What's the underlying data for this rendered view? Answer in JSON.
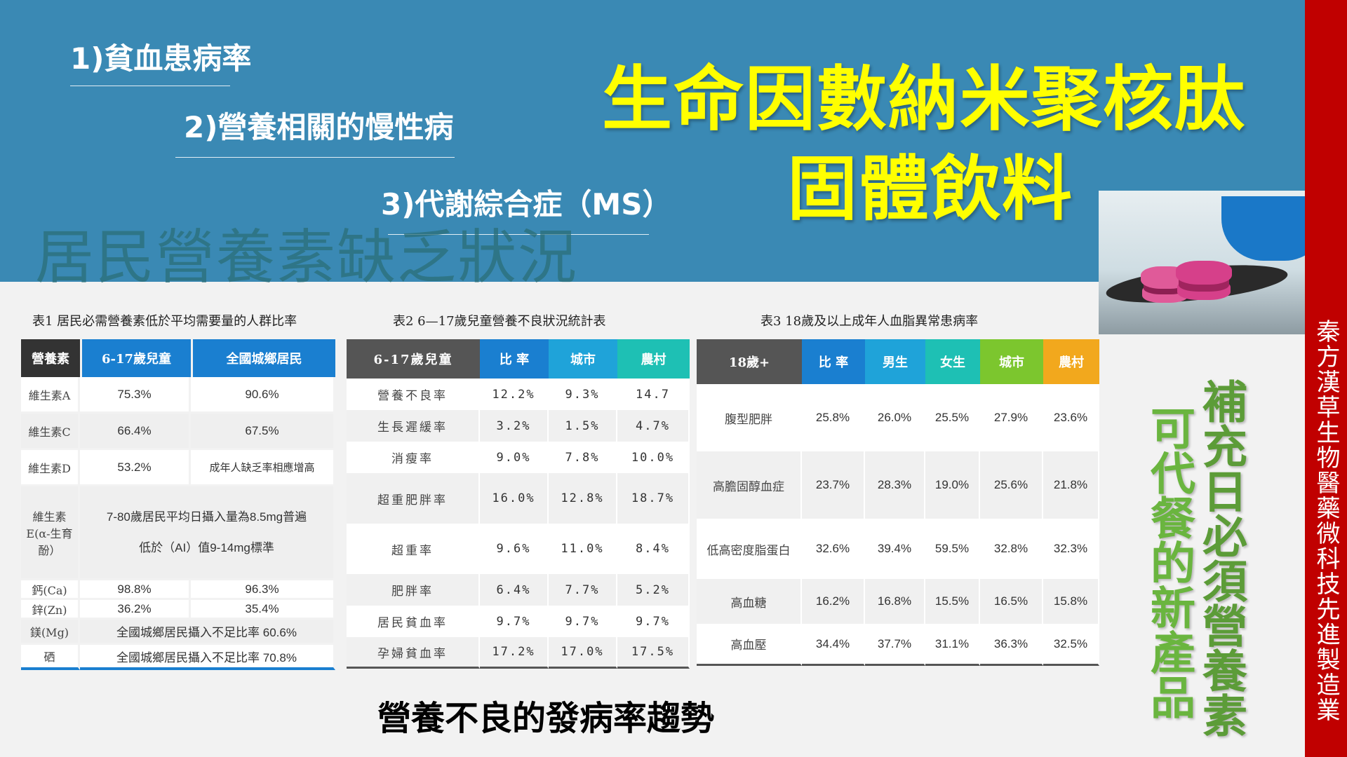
{
  "header": {
    "issues": [
      "1)貧血患病率",
      "2)營養相關的慢性病",
      "3)代謝綜合症（MS）"
    ],
    "ghost_title": "居民營養素缺乏狀況",
    "product_line1": "生命因數納米聚核肽",
    "product_line2": "固體飲料"
  },
  "sidebar": {
    "company": "秦方漢草生物醫藥微科技先進製造業"
  },
  "table1": {
    "caption": "表1  居民必需營養素低於平均需要量的人群比率",
    "headers": [
      "營養素",
      "6-17歲兒童",
      "全國城鄉居民"
    ],
    "rows": [
      {
        "name": "維生素A",
        "child": "75.3%",
        "national": "90.6%"
      },
      {
        "name": "維生素C",
        "child": "66.4%",
        "national": "67.5%"
      },
      {
        "name": "維生素D",
        "child": "53.2%",
        "national": "成年人缺乏率相應增高"
      },
      {
        "name": "維生素E(α-生育酚）",
        "note_line1": "7-80歲居民平均日攝入量為8.5mg普遍",
        "note_line2": "低於（AI）值9-14mg標準"
      },
      {
        "name": "鈣(Ca)",
        "child": "98.8%",
        "national": "96.3%"
      },
      {
        "name": "鋅(Zn)",
        "child": "36.2%",
        "national": "35.4%"
      },
      {
        "name": "鎂(Mg)",
        "note": "全國城鄉居民攝入不足比率 60.6%"
      },
      {
        "name": "硒",
        "note": "全國城鄉居民攝入不足比率 70.8%"
      }
    ]
  },
  "table2": {
    "caption": "表2    6—17歲兒童營養不良狀況統計表",
    "headers": [
      "6-17歲兒童",
      "比 率",
      "城市",
      "農村"
    ],
    "rows": [
      [
        "營養不良率",
        "12.2%",
        "9.3%",
        "14.7"
      ],
      [
        "生長遲緩率",
        "3.2%",
        "1.5%",
        "4.7%"
      ],
      [
        "消瘦率",
        "9.0%",
        "7.8%",
        "10.0%"
      ],
      [
        "超重肥胖率",
        "16.0%",
        "12.8%",
        "18.7%"
      ],
      [
        "超重率",
        "9.6%",
        "11.0%",
        "8.4%"
      ],
      [
        "肥胖率",
        "6.4%",
        "7.7%",
        "5.2%"
      ],
      [
        "居民貧血率",
        "9.7%",
        "9.7%",
        "9.7%"
      ],
      [
        "孕婦貧血率",
        "17.2%",
        "17.0%",
        "17.5%"
      ]
    ]
  },
  "table3": {
    "caption": "表3        18歲及以上成年人血脂異常患病率",
    "headers": [
      "18歲+",
      "比 率",
      "男生",
      "女生",
      "城市",
      "農村"
    ],
    "header_colors": [
      "#555555",
      "#1a7fd0",
      "#1fa3d9",
      "#1ec0b4",
      "#7cc62e",
      "#f2a81d"
    ],
    "rows": [
      [
        "腹型肥胖",
        "25.8%",
        "26.0%",
        "25.5%",
        "27.9%",
        "23.6%"
      ],
      [
        "高膽固醇血症",
        "23.7%",
        "28.3%",
        "19.0%",
        "25.6%",
        "21.8%"
      ],
      [
        "低高密度脂蛋白",
        "32.6%",
        "39.4%",
        "59.5%",
        "32.8%",
        "32.3%"
      ],
      [
        "高血糖",
        "16.2%",
        "16.8%",
        "15.5%",
        "16.5%",
        "15.8%"
      ],
      [
        "高血壓",
        "34.4%",
        "37.7%",
        "31.1%",
        "36.3%",
        "32.5%"
      ]
    ]
  },
  "footer": {
    "trend": "營養不良的發病率趨勢",
    "slogan1": "補充日必須營養素",
    "slogan2": "可代餐的新產品"
  },
  "colors": {
    "header_bg": "#3a89b4",
    "product_title": "#ffff00",
    "side_bar": "#c00000",
    "t1_header_dark": "#333333",
    "t1_header_blue": "#1a7fd0",
    "t2_header_dark": "#555555",
    "t2_header_blue": "#1a7fd0",
    "t2_header_cyan": "#1fa3d9",
    "t2_header_teal": "#1ec0b4",
    "slogan1": "#5c9c38",
    "slogan2": "#6ab53f"
  }
}
